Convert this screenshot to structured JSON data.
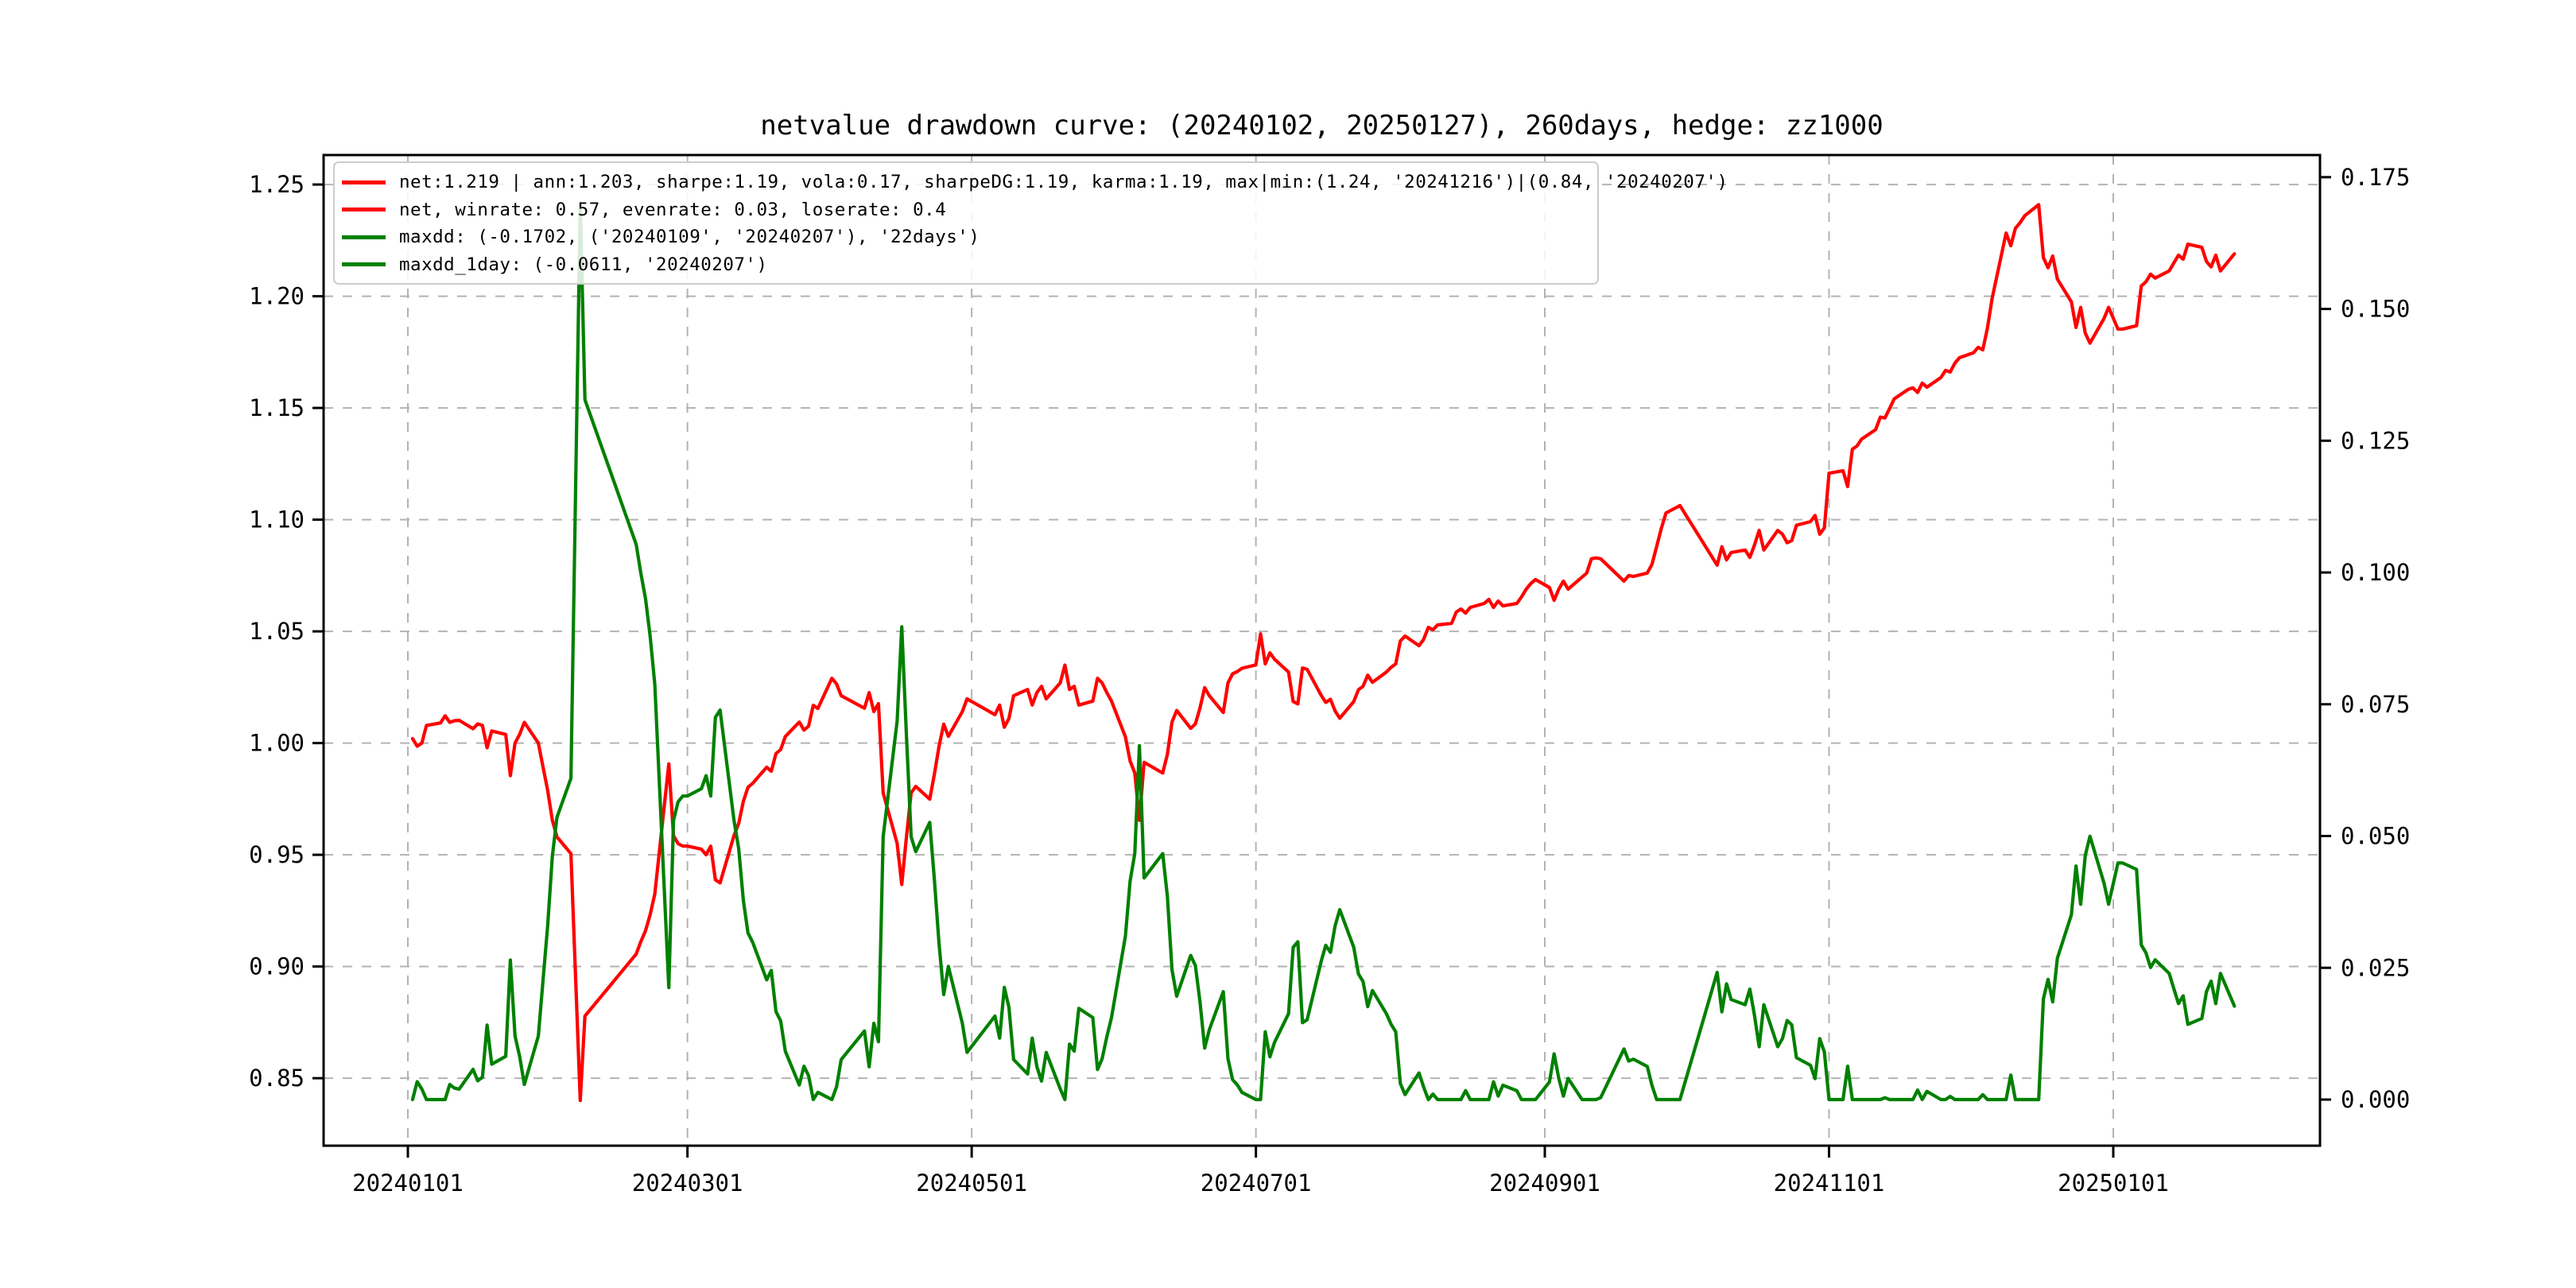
{
  "title": "netvalue drawdown curve: (20240102, 20250127), 260days, hedge: zz1000",
  "colors": {
    "net": "#ff0000",
    "drawdown": "#008000",
    "grid": "#b3b3b3",
    "spine": "#000000",
    "legend_border": "#cccccc",
    "background": "#ffffff"
  },
  "legend": {
    "position": "upper left",
    "entries": [
      {
        "label": "net:1.219 | ann:1.203, sharpe:1.19, vola:0.17, sharpeDG:1.19, karma:1.19, max|min:(1.24, '20241216')|(0.84, '20240207')",
        "color_key": "net"
      },
      {
        "label": "net, winrate: 0.57, evenrate: 0.03, loserate: 0.4",
        "color_key": "net"
      },
      {
        "label": "maxdd: (-0.1702, ('20240109', '20240207'), '22days')",
        "color_key": "drawdown"
      },
      {
        "label": "maxdd_1day: (-0.0611, '20240207')",
        "color_key": "drawdown"
      }
    ]
  },
  "axes": {
    "x": {
      "tick_labels": [
        "20240101",
        "20240301",
        "20240501",
        "20240701",
        "20240901",
        "20241101",
        "20250101"
      ]
    },
    "y_left": {
      "tick_labels": [
        "0.85",
        "0.90",
        "0.95",
        "1.00",
        "1.05",
        "1.10",
        "1.15",
        "1.20",
        "1.25"
      ],
      "lim": [
        0.8198,
        1.2632
      ]
    },
    "y_right": {
      "tick_labels": [
        "0.000",
        "0.025",
        "0.050",
        "0.075",
        "0.100",
        "0.125",
        "0.150",
        "0.175"
      ],
      "lim": [
        -0.00875,
        0.1792
      ]
    }
  },
  "chart_data": {
    "type": "line",
    "title": "netvalue drawdown curve: (20240102, 20250127), 260days, hedge: zz1000",
    "xlabel": "",
    "ylabel_left": "",
    "ylabel_right": "",
    "grid": "dashed",
    "legend_position": "upper left",
    "x_is_date": true,
    "stats": {
      "net_final": 1.219,
      "ann": 1.203,
      "sharpe": 1.19,
      "vola": 0.17,
      "sharpeDG": 1.19,
      "karma": 1.19,
      "max": {
        "value": 1.24,
        "date": "20241216"
      },
      "min": {
        "value": 0.84,
        "date": "20240207"
      },
      "winrate": 0.57,
      "evenrate": 0.03,
      "loserate": 0.4,
      "maxdd": {
        "value": -0.1702,
        "from": "20240109",
        "to": "20240207",
        "length": "22days"
      },
      "maxdd_1day": {
        "value": -0.0611,
        "date": "20240207"
      }
    },
    "series": [
      {
        "name": "net",
        "axis": "left",
        "color_key": "net",
        "dates": [
          "20240102",
          "20240103",
          "20240104",
          "20240105",
          "20240108",
          "20240109",
          "20240110",
          "20240111",
          "20240112",
          "20240115",
          "20240116",
          "20240117",
          "20240118",
          "20240119",
          "20240122",
          "20240123",
          "20240124",
          "20240125",
          "20240126",
          "20240129",
          "20240130",
          "20240131",
          "20240201",
          "20240202",
          "20240205",
          "20240206",
          "20240207",
          "20240208",
          "20240219",
          "20240220",
          "20240221",
          "20240222",
          "20240223",
          "20240226",
          "20240227",
          "20240228",
          "20240229",
          "20240301",
          "20240304",
          "20240305",
          "20240306",
          "20240307",
          "20240308",
          "20240311",
          "20240312",
          "20240313",
          "20240314",
          "20240315",
          "20240318",
          "20240319",
          "20240320",
          "20240321",
          "20240322",
          "20240325",
          "20240326",
          "20240327",
          "20240328",
          "20240329",
          "20240401",
          "20240402",
          "20240403",
          "20240408",
          "20240409",
          "20240410",
          "20240411",
          "20240412",
          "20240415",
          "20240416",
          "20240417",
          "20240418",
          "20240419",
          "20240422",
          "20240423",
          "20240424",
          "20240425",
          "20240426",
          "20240429",
          "20240430",
          "20240506",
          "20240507",
          "20240508",
          "20240509",
          "20240510",
          "20240513",
          "20240514",
          "20240515",
          "20240516",
          "20240517",
          "20240520",
          "20240521",
          "20240522",
          "20240523",
          "20240524",
          "20240527",
          "20240528",
          "20240529",
          "20240530",
          "20240531",
          "20240603",
          "20240604",
          "20240605",
          "20240606",
          "20240607",
          "20240611",
          "20240612",
          "20240613",
          "20240614",
          "20240617",
          "20240618",
          "20240619",
          "20240620",
          "20240621",
          "20240624",
          "20240625",
          "20240626",
          "20240627",
          "20240628",
          "20240701",
          "20240702",
          "20240703",
          "20240704",
          "20240705",
          "20240708",
          "20240709",
          "20240710",
          "20240711",
          "20240712",
          "20240715",
          "20240716",
          "20240717",
          "20240718",
          "20240719",
          "20240722",
          "20240723",
          "20240724",
          "20240725",
          "20240726",
          "20240729",
          "20240730",
          "20240731",
          "20240801",
          "20240802",
          "20240805",
          "20240806",
          "20240807",
          "20240808",
          "20240809",
          "20240812",
          "20240813",
          "20240814",
          "20240815",
          "20240816",
          "20240819",
          "20240820",
          "20240821",
          "20240822",
          "20240823",
          "20240826",
          "20240827",
          "20240828",
          "20240829",
          "20240830",
          "20240902",
          "20240903",
          "20240904",
          "20240905",
          "20240906",
          "20240909",
          "20240910",
          "20240911",
          "20240912",
          "20240913",
          "20240918",
          "20240919",
          "20240920",
          "20240923",
          "20240924",
          "20240925",
          "20240926",
          "20240927",
          "20240930",
          "20241008",
          "20241009",
          "20241010",
          "20241011",
          "20241014",
          "20241015",
          "20241016",
          "20241017",
          "20241018",
          "20241021",
          "20241022",
          "20241023",
          "20241024",
          "20241025",
          "20241028",
          "20241029",
          "20241030",
          "20241031",
          "20241101",
          "20241104",
          "20241105",
          "20241106",
          "20241107",
          "20241108",
          "20241111",
          "20241112",
          "20241113",
          "20241114",
          "20241115",
          "20241118",
          "20241119",
          "20241120",
          "20241121",
          "20241122",
          "20241125",
          "20241126",
          "20241127",
          "20241128",
          "20241129",
          "20241202",
          "20241203",
          "20241204",
          "20241205",
          "20241206",
          "20241209",
          "20241210",
          "20241211",
          "20241212",
          "20241213",
          "20241216",
          "20241217",
          "20241218",
          "20241219",
          "20241220",
          "20241223",
          "20241224",
          "20241225",
          "20241226",
          "20241227",
          "20241230",
          "20241231",
          "20250102",
          "20250103",
          "20250106",
          "20250107",
          "20250108",
          "20250109",
          "20250110",
          "20250113",
          "20250114",
          "20250115",
          "20250116",
          "20250117",
          "20250120",
          "20250121",
          "20250122",
          "20250123",
          "20250124",
          "20250127"
        ],
        "values": [
          1.002,
          0.9986,
          1.0,
          1.0079,
          1.009,
          1.0122,
          1.0093,
          1.01,
          1.0102,
          1.0064,
          1.0086,
          1.0079,
          0.9979,
          1.0054,
          1.0039,
          0.9854,
          1.0,
          1.004,
          1.0093,
          1.0,
          0.9893,
          0.9789,
          0.9655,
          0.958,
          0.9505,
          0.8947,
          0.84,
          0.8778,
          0.9056,
          0.9111,
          0.916,
          0.9233,
          0.9325,
          0.9907,
          0.9586,
          0.955,
          0.9539,
          0.9539,
          0.9525,
          0.95,
          0.9539,
          0.9388,
          0.9374,
          0.9586,
          0.964,
          0.974,
          0.9802,
          0.982,
          0.9892,
          0.9874,
          0.9953,
          0.9971,
          1.0029,
          1.0094,
          1.0058,
          1.0076,
          1.0169,
          1.0155,
          1.029,
          1.0265,
          1.0212,
          1.0156,
          1.0226,
          1.0141,
          1.0177,
          0.9777,
          0.9551,
          0.9367,
          0.958,
          0.9777,
          0.9806,
          0.9749,
          0.9862,
          0.9986,
          1.0085,
          1.003,
          1.0141,
          1.0198,
          1.0127,
          1.017,
          1.0071,
          1.011,
          1.0212,
          1.024,
          1.017,
          1.0226,
          1.0254,
          1.0198,
          1.0269,
          1.0349,
          1.024,
          1.0254,
          1.017,
          1.0188,
          1.029,
          1.0269,
          1.0226,
          1.0188,
          1.0028,
          0.992,
          0.9866,
          0.9654,
          0.9914,
          0.9866,
          0.995,
          1.0094,
          1.0146,
          1.0066,
          1.0086,
          1.0157,
          1.0248,
          1.0212,
          1.0137,
          1.0269,
          1.031,
          1.032,
          1.0335,
          1.035,
          1.0489,
          1.0354,
          1.0404,
          1.0375,
          1.0318,
          1.0186,
          1.0175,
          1.0336,
          1.033,
          1.0214,
          1.0182,
          1.0196,
          1.0143,
          1.0111,
          1.0186,
          1.0239,
          1.0254,
          1.0304,
          1.0272,
          1.0318,
          1.0339,
          1.0354,
          1.0457,
          1.0479,
          1.0436,
          1.0464,
          1.0518,
          1.0507,
          1.0529,
          1.0536,
          1.0586,
          1.06,
          1.0582,
          1.0607,
          1.0625,
          1.0643,
          1.0607,
          1.0636,
          1.0614,
          1.0625,
          1.0654,
          1.0689,
          1.0714,
          1.0732,
          1.0696,
          1.0639,
          1.0689,
          1.0725,
          1.0689,
          1.0743,
          1.0761,
          1.0825,
          1.0829,
          1.0825,
          1.0725,
          1.075,
          1.0746,
          1.0761,
          1.08,
          1.088,
          1.096,
          1.103,
          1.1063,
          1.0796,
          1.0879,
          1.082,
          1.0853,
          1.0864,
          1.0831,
          1.0886,
          1.0952,
          1.0864,
          1.0952,
          1.0935,
          1.0897,
          1.0906,
          1.0975,
          1.0991,
          1.1019,
          1.0935,
          1.0963,
          1.1208,
          1.1219,
          1.1148,
          1.1315,
          1.133,
          1.1361,
          1.1403,
          1.1459,
          1.1455,
          1.1498,
          1.1541,
          1.1583,
          1.159,
          1.1569,
          1.1611,
          1.1593,
          1.1636,
          1.1668,
          1.1661,
          1.17,
          1.1725,
          1.1747,
          1.1771,
          1.176,
          1.1859,
          1.199,
          1.2283,
          1.2226,
          1.2304,
          1.2329,
          1.236,
          1.241,
          1.2173,
          1.2127,
          1.218,
          1.2077,
          1.1975,
          1.186,
          1.195,
          1.1835,
          1.179,
          1.19,
          1.195,
          1.1853,
          1.1853,
          1.1868,
          1.2046,
          1.2064,
          1.2099,
          1.2081,
          1.2113,
          1.2149,
          1.2184,
          1.2166,
          1.2233,
          1.2219,
          1.2156,
          1.2131,
          1.2184,
          1.2113,
          1.219
        ]
      },
      {
        "name": "maxdd",
        "axis": "right",
        "color_key": "drawdown",
        "derived_from": "net",
        "formula": "dd[t] = 1 - net[t] / max(1.0, net[0..t])",
        "peak": {
          "value": 0.1702,
          "date": "20240207"
        }
      }
    ]
  }
}
